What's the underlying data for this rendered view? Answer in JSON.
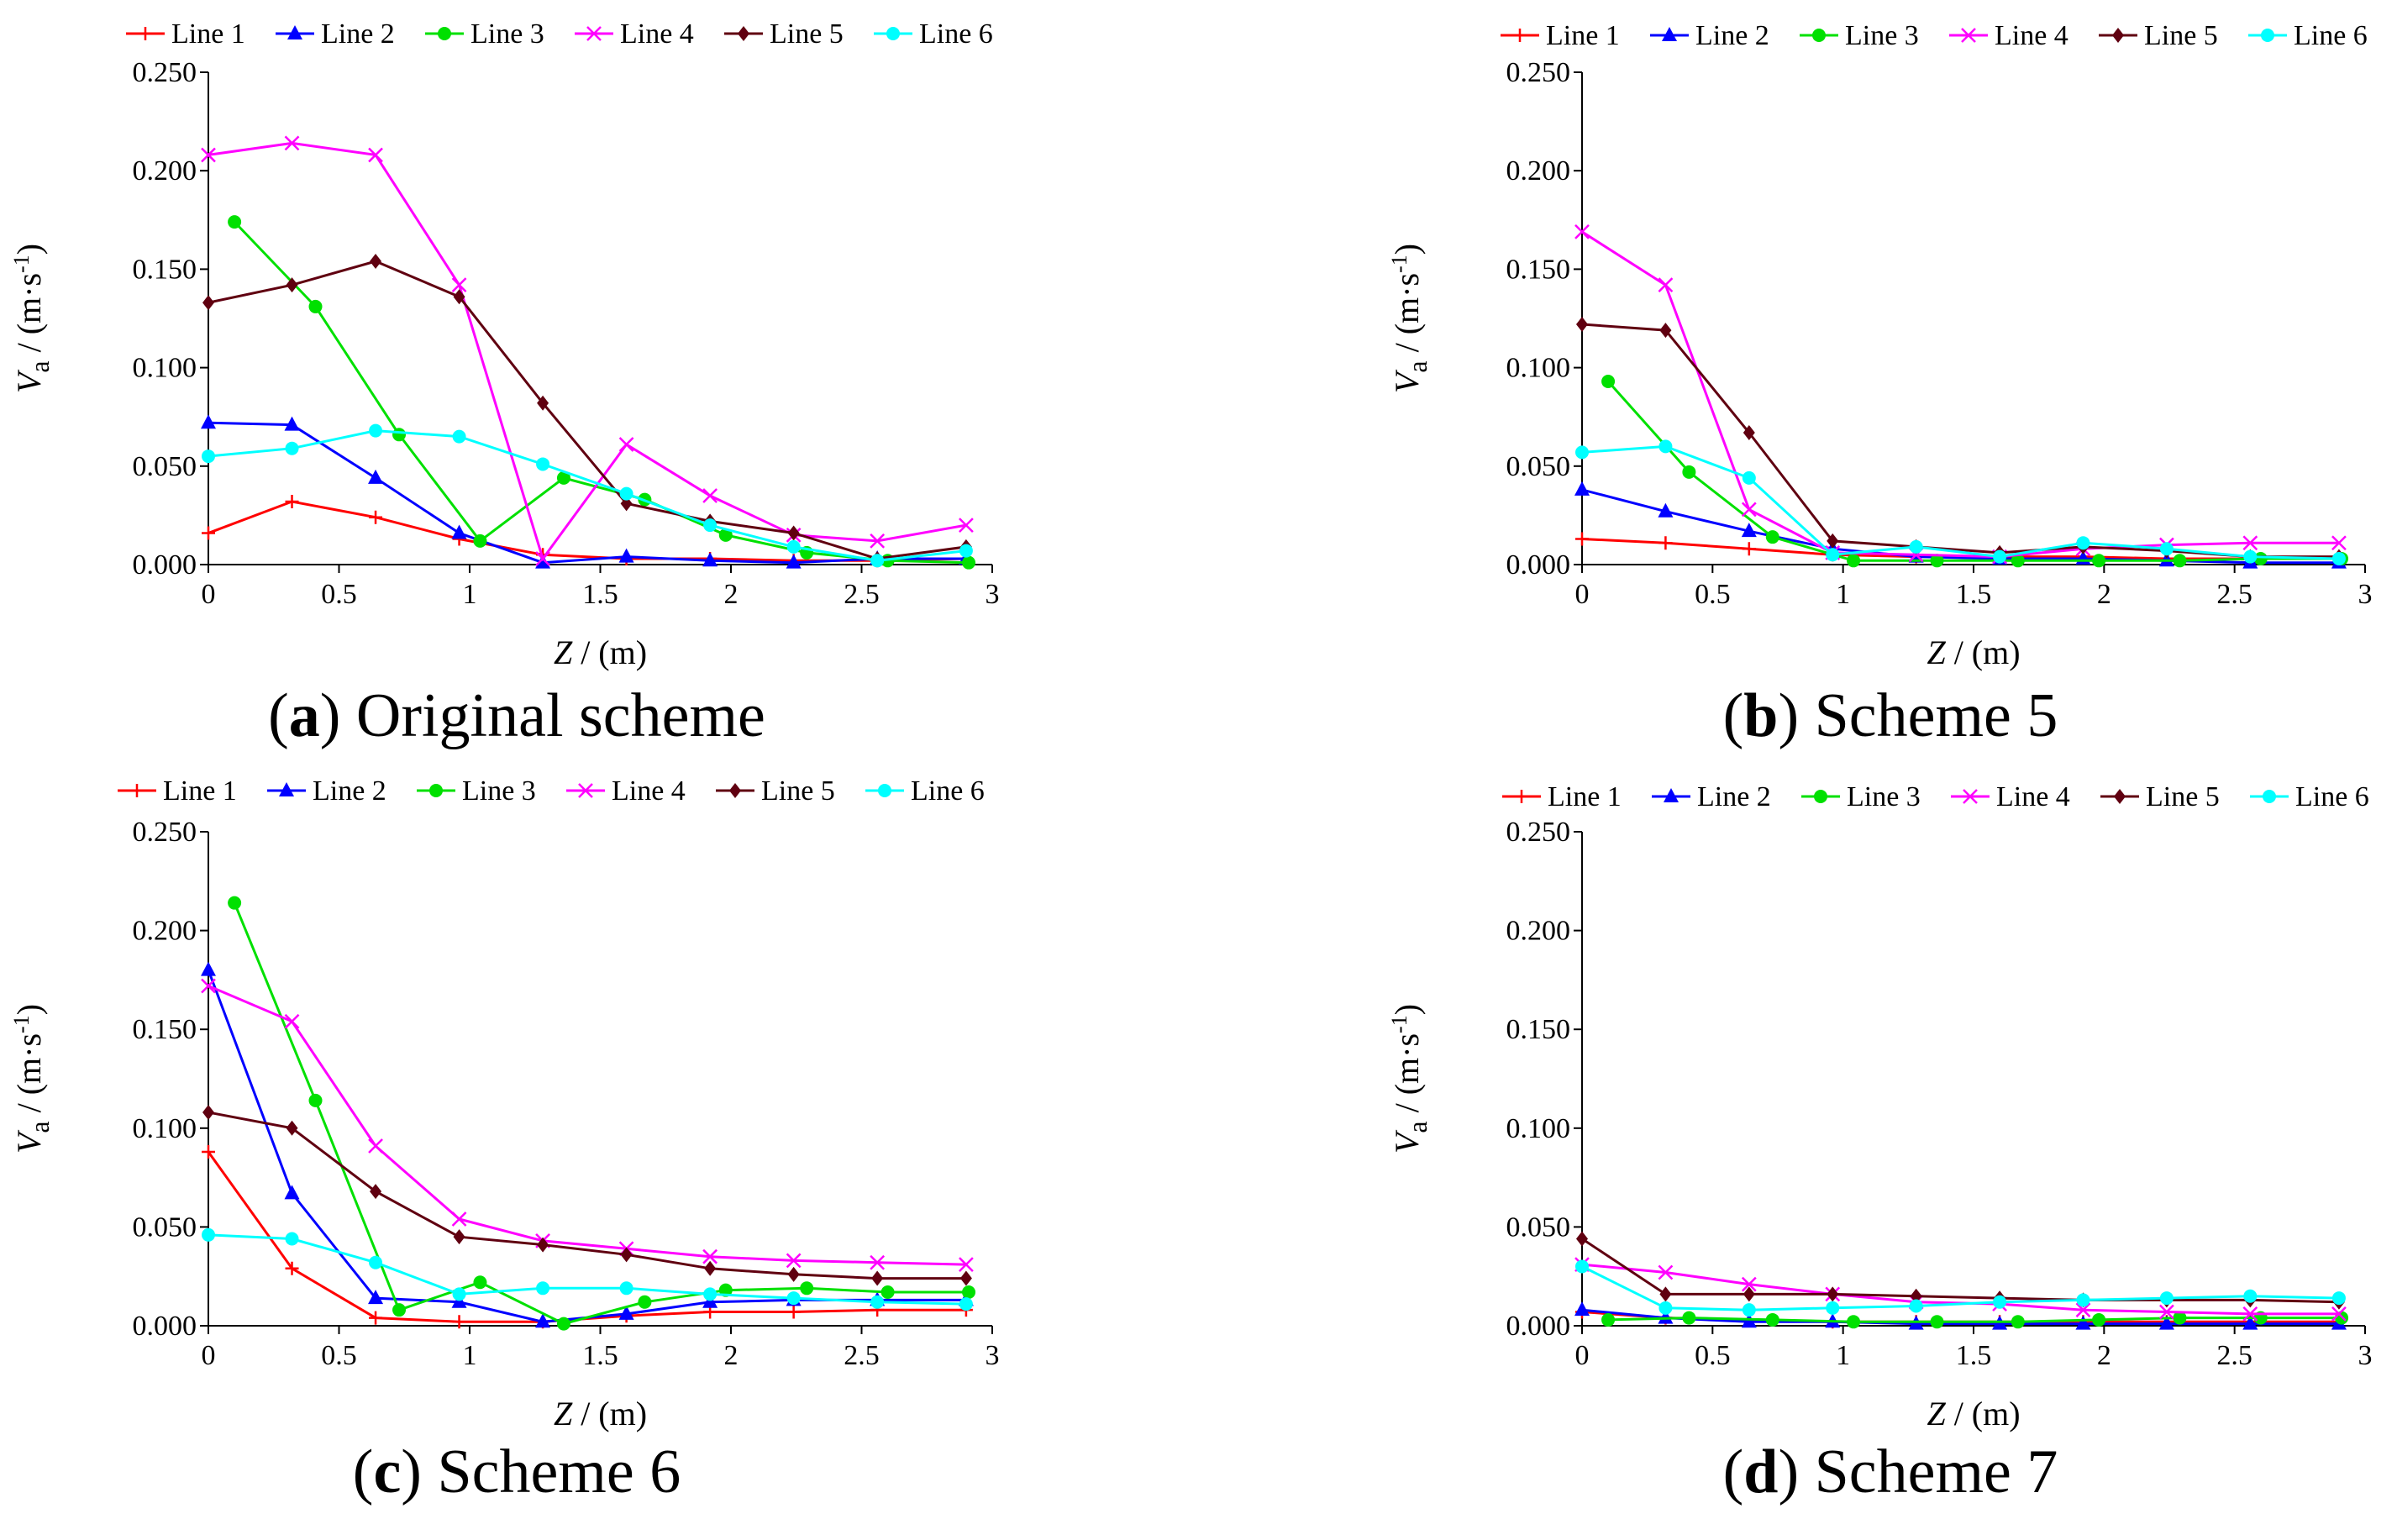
{
  "legend": [
    "Line 1",
    "Line 2",
    "Line 3",
    "Line 4",
    "Line 5",
    "Line 6"
  ],
  "colors": [
    "#ff0000",
    "#0000ff",
    "#00e000",
    "#ff00ff",
    "#600010",
    "#00ffff"
  ],
  "markers": [
    "plus",
    "triangle",
    "circle",
    "cross",
    "diamond",
    "circle"
  ],
  "axes": {
    "xlabel_var": "Z",
    "xlabel_unit": " / (m)",
    "ylabel_var": "V",
    "ylabel_sub": "a",
    "ylabel_unit": " / (m·s",
    "ylabel_exp": "-1",
    "ylabel_close": ")",
    "x_ticks": [
      "0",
      "0.5",
      "1",
      "1.5",
      "2",
      "2.5",
      "3"
    ],
    "y_ticks": [
      "0.000",
      "0.050",
      "0.100",
      "0.150",
      "0.200",
      "0.250"
    ]
  },
  "chart_data": [
    {
      "type": "line",
      "caption_letter": "a",
      "caption_text": "Original scheme",
      "xlim": [
        0,
        3
      ],
      "ylim": [
        0,
        0.25
      ],
      "series": [
        {
          "name": "Line 1",
          "x": [
            0,
            0.32,
            0.64,
            0.96,
            1.28,
            1.6,
            1.92,
            2.24,
            2.56,
            2.9
          ],
          "y": [
            0.016,
            0.032,
            0.024,
            0.013,
            0.005,
            0.003,
            0.003,
            0.002,
            0.002,
            0.003
          ]
        },
        {
          "name": "Line 2",
          "x": [
            0,
            0.32,
            0.64,
            0.96,
            1.28,
            1.6,
            1.92,
            2.24,
            2.56,
            2.9
          ],
          "y": [
            0.072,
            0.071,
            0.044,
            0.016,
            0.001,
            0.004,
            0.002,
            0.001,
            0.003,
            0.003
          ]
        },
        {
          "name": "Line 3",
          "x": [
            0.1,
            0.41,
            0.73,
            1.04,
            1.36,
            1.67,
            1.98,
            2.29,
            2.6,
            2.91
          ],
          "y": [
            0.174,
            0.131,
            0.066,
            0.012,
            0.044,
            0.033,
            0.015,
            0.006,
            0.002,
            0.001
          ]
        },
        {
          "name": "Line 4",
          "x": [
            0,
            0.32,
            0.64,
            0.96,
            1.28,
            1.6,
            1.92,
            2.24,
            2.56,
            2.9
          ],
          "y": [
            0.208,
            0.214,
            0.208,
            0.142,
            0.003,
            0.061,
            0.035,
            0.015,
            0.012,
            0.02
          ]
        },
        {
          "name": "Line 5",
          "x": [
            0,
            0.32,
            0.64,
            0.96,
            1.28,
            1.6,
            1.92,
            2.24,
            2.56,
            2.9
          ],
          "y": [
            0.133,
            0.142,
            0.154,
            0.136,
            0.082,
            0.031,
            0.022,
            0.016,
            0.003,
            0.009
          ]
        },
        {
          "name": "Line 6",
          "x": [
            0,
            0.32,
            0.64,
            0.96,
            1.28,
            1.6,
            1.92,
            2.24,
            2.56,
            2.9
          ],
          "y": [
            0.055,
            0.059,
            0.068,
            0.065,
            0.051,
            0.036,
            0.02,
            0.009,
            0.002,
            0.007
          ]
        }
      ]
    },
    {
      "type": "line",
      "caption_letter": "b",
      "caption_text": "Scheme 5",
      "xlim": [
        0,
        3
      ],
      "ylim": [
        0,
        0.25
      ],
      "series": [
        {
          "name": "Line 1",
          "x": [
            0,
            0.32,
            0.64,
            0.96,
            1.28,
            1.6,
            1.92,
            2.24,
            2.56,
            2.9
          ],
          "y": [
            0.013,
            0.011,
            0.008,
            0.005,
            0.004,
            0.004,
            0.004,
            0.003,
            0.003,
            0.003
          ]
        },
        {
          "name": "Line 2",
          "x": [
            0,
            0.32,
            0.64,
            0.96,
            1.28,
            1.6,
            1.92,
            2.24,
            2.56,
            2.9
          ],
          "y": [
            0.038,
            0.027,
            0.017,
            0.008,
            0.004,
            0.003,
            0.003,
            0.002,
            0.001,
            0.001
          ]
        },
        {
          "name": "Line 3",
          "x": [
            0.1,
            0.41,
            0.73,
            1.04,
            1.36,
            1.67,
            1.98,
            2.29,
            2.6,
            2.91
          ],
          "y": [
            0.093,
            0.047,
            0.014,
            0.002,
            0.002,
            0.002,
            0.002,
            0.002,
            0.003,
            0.003
          ]
        },
        {
          "name": "Line 4",
          "x": [
            0,
            0.32,
            0.64,
            0.96,
            1.28,
            1.6,
            1.92,
            2.24,
            2.56,
            2.9
          ],
          "y": [
            0.169,
            0.142,
            0.028,
            0.006,
            0.005,
            0.004,
            0.008,
            0.01,
            0.011,
            0.011
          ]
        },
        {
          "name": "Line 5",
          "x": [
            0,
            0.32,
            0.64,
            0.96,
            1.28,
            1.6,
            1.92,
            2.24,
            2.56,
            2.9
          ],
          "y": [
            0.122,
            0.119,
            0.067,
            0.012,
            0.009,
            0.006,
            0.009,
            0.007,
            0.004,
            0.004
          ]
        },
        {
          "name": "Line 6",
          "x": [
            0,
            0.32,
            0.64,
            0.96,
            1.28,
            1.6,
            1.92,
            2.24,
            2.56,
            2.9
          ],
          "y": [
            0.057,
            0.06,
            0.044,
            0.005,
            0.009,
            0.004,
            0.011,
            0.008,
            0.004,
            0.003
          ]
        }
      ]
    },
    {
      "type": "line",
      "caption_letter": "c",
      "caption_text": "Scheme 6",
      "xlim": [
        0,
        3
      ],
      "ylim": [
        0,
        0.25
      ],
      "series": [
        {
          "name": "Line 1",
          "x": [
            0,
            0.32,
            0.64,
            0.96,
            1.28,
            1.6,
            1.92,
            2.24,
            2.56,
            2.9
          ],
          "y": [
            0.088,
            0.029,
            0.004,
            0.002,
            0.002,
            0.005,
            0.007,
            0.007,
            0.008,
            0.008
          ]
        },
        {
          "name": "Line 2",
          "x": [
            0,
            0.32,
            0.64,
            0.96,
            1.28,
            1.6,
            1.92,
            2.24,
            2.56,
            2.9
          ],
          "y": [
            0.18,
            0.067,
            0.014,
            0.012,
            0.002,
            0.006,
            0.012,
            0.013,
            0.013,
            0.013
          ]
        },
        {
          "name": "Line 3",
          "x": [
            0.1,
            0.41,
            0.73,
            1.04,
            1.36,
            1.67,
            1.98,
            2.29,
            2.6,
            2.91
          ],
          "y": [
            0.214,
            0.114,
            0.008,
            0.022,
            0.001,
            0.012,
            0.018,
            0.019,
            0.017,
            0.017
          ]
        },
        {
          "name": "Line 4",
          "x": [
            0,
            0.32,
            0.64,
            0.96,
            1.28,
            1.6,
            1.92,
            2.24,
            2.56,
            2.9
          ],
          "y": [
            0.172,
            0.154,
            0.091,
            0.054,
            0.043,
            0.039,
            0.035,
            0.033,
            0.032,
            0.031
          ]
        },
        {
          "name": "Line 5",
          "x": [
            0,
            0.32,
            0.64,
            0.96,
            1.28,
            1.6,
            1.92,
            2.24,
            2.56,
            2.9
          ],
          "y": [
            0.108,
            0.1,
            0.068,
            0.045,
            0.041,
            0.036,
            0.029,
            0.026,
            0.024,
            0.024
          ]
        },
        {
          "name": "Line 6",
          "x": [
            0,
            0.32,
            0.64,
            0.96,
            1.28,
            1.6,
            1.92,
            2.24,
            2.56,
            2.9
          ],
          "y": [
            0.046,
            0.044,
            0.032,
            0.016,
            0.019,
            0.019,
            0.016,
            0.014,
            0.012,
            0.011
          ]
        }
      ]
    },
    {
      "type": "line",
      "caption_letter": "d",
      "caption_text": "Scheme 7",
      "xlim": [
        0,
        3
      ],
      "ylim": [
        0,
        0.25
      ],
      "series": [
        {
          "name": "Line 1",
          "x": [
            0,
            0.32,
            0.64,
            0.96,
            1.28,
            1.6,
            1.92,
            2.24,
            2.56,
            2.9
          ],
          "y": [
            0.007,
            0.004,
            0.003,
            0.002,
            0.002,
            0.002,
            0.002,
            0.002,
            0.002,
            0.002
          ]
        },
        {
          "name": "Line 2",
          "x": [
            0,
            0.32,
            0.64,
            0.96,
            1.28,
            1.6,
            1.92,
            2.24,
            2.56,
            2.9
          ],
          "y": [
            0.008,
            0.004,
            0.002,
            0.002,
            0.001,
            0.001,
            0.001,
            0.001,
            0.001,
            0.001
          ]
        },
        {
          "name": "Line 3",
          "x": [
            0.1,
            0.41,
            0.73,
            1.04,
            1.36,
            1.67,
            1.98,
            2.29,
            2.6,
            2.91
          ],
          "y": [
            0.003,
            0.004,
            0.003,
            0.002,
            0.002,
            0.002,
            0.003,
            0.004,
            0.004,
            0.004
          ]
        },
        {
          "name": "Line 4",
          "x": [
            0,
            0.32,
            0.64,
            0.96,
            1.28,
            1.6,
            1.92,
            2.24,
            2.56,
            2.9
          ],
          "y": [
            0.031,
            0.027,
            0.021,
            0.016,
            0.012,
            0.011,
            0.008,
            0.007,
            0.006,
            0.006
          ]
        },
        {
          "name": "Line 5",
          "x": [
            0,
            0.32,
            0.64,
            0.96,
            1.28,
            1.6,
            1.92,
            2.24,
            2.56,
            2.9
          ],
          "y": [
            0.044,
            0.016,
            0.016,
            0.016,
            0.015,
            0.014,
            0.013,
            0.013,
            0.013,
            0.012
          ]
        },
        {
          "name": "Line 6",
          "x": [
            0,
            0.32,
            0.64,
            0.96,
            1.28,
            1.6,
            1.92,
            2.24,
            2.56,
            2.9
          ],
          "y": [
            0.03,
            0.009,
            0.008,
            0.009,
            0.01,
            0.012,
            0.013,
            0.014,
            0.015,
            0.014
          ]
        }
      ]
    }
  ]
}
